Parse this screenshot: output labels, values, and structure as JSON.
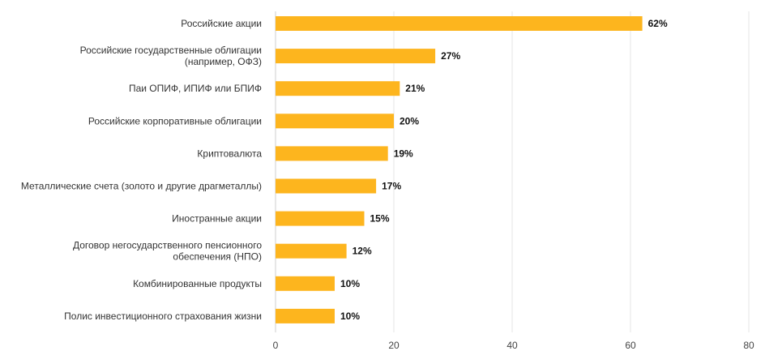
{
  "chart_data": {
    "type": "bar",
    "orientation": "horizontal",
    "title": "",
    "xlabel": "",
    "ylabel": "",
    "xlim": [
      0,
      80
    ],
    "ticks": [
      0,
      20,
      40,
      60,
      80
    ],
    "grid": true,
    "bar_color": "#FDB51E",
    "categories": [
      [
        "Российские акции"
      ],
      [
        "Российские государственные облигации",
        "(например, ОФЗ)"
      ],
      [
        "Паи ОПИФ, ИПИФ или БПИФ"
      ],
      [
        "Российские корпоративные облигации"
      ],
      [
        "Криптовалюта"
      ],
      [
        "Металлические счета (золото и другие драгметаллы)"
      ],
      [
        "Иностранные акции"
      ],
      [
        "Договор негосударственного пенсионного",
        "обеспечения (НПО)"
      ],
      [
        "Комбинированные продукты"
      ],
      [
        "Полис инвестиционного страхования жизни"
      ]
    ],
    "values": [
      62,
      27,
      21,
      20,
      19,
      17,
      15,
      12,
      10,
      10
    ],
    "value_labels": [
      "62%",
      "27%",
      "21%",
      "20%",
      "19%",
      "17%",
      "15%",
      "12%",
      "10%",
      "10%"
    ]
  }
}
